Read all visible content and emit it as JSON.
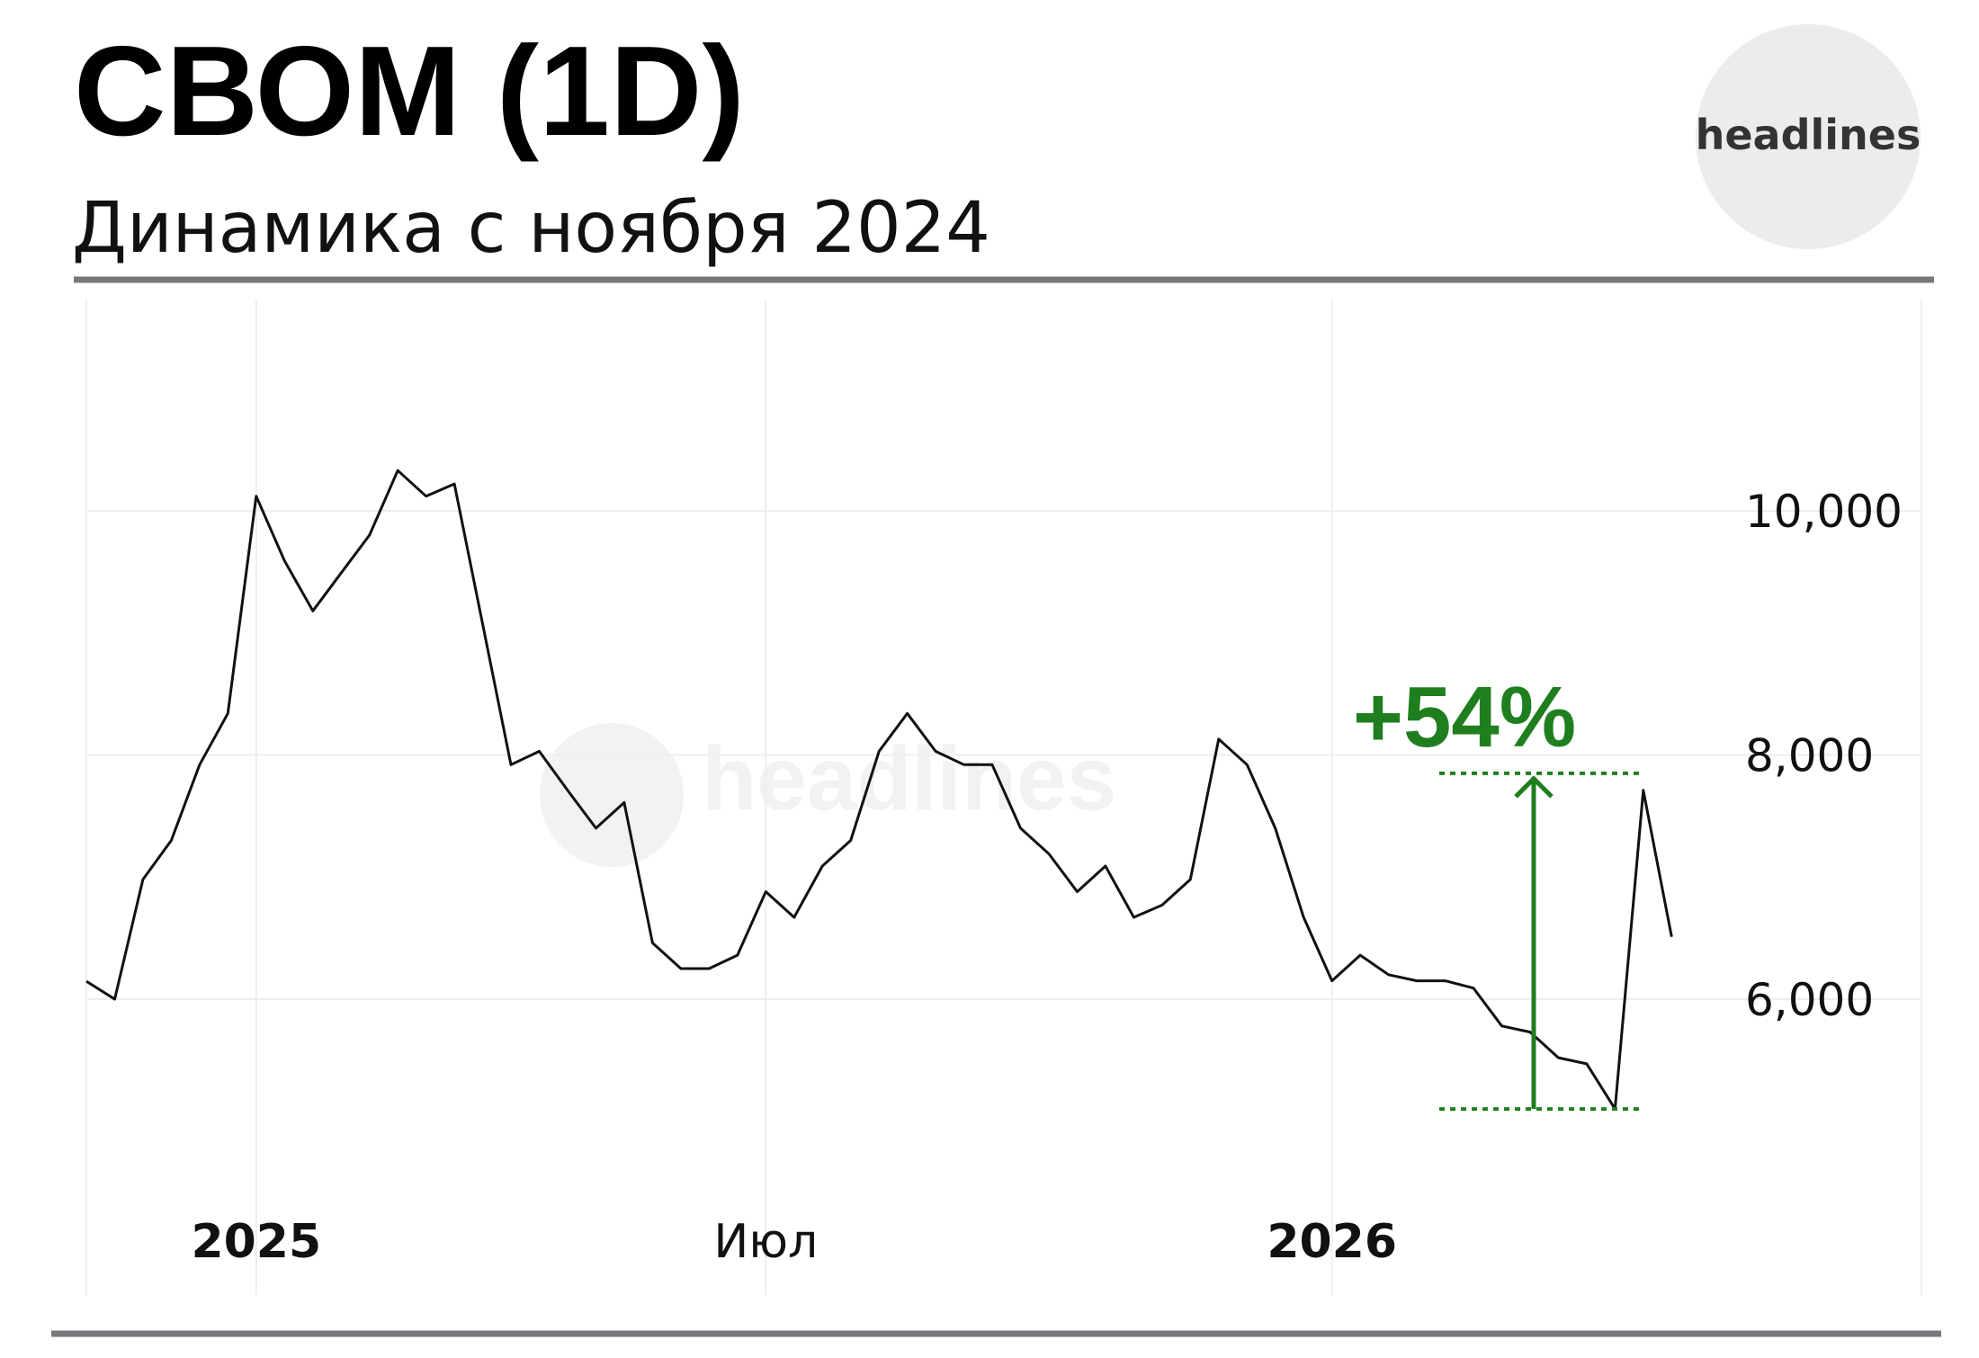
{
  "chart_data": {
    "type": "line",
    "title": "СВОМ (1D)",
    "subtitle": "Динамика с ноября 2024",
    "logo": "headlines",
    "watermark": "headlines",
    "color": "#111111",
    "categories": [
      null,
      null,
      null,
      null,
      null,
      null,
      "2025",
      null,
      null,
      null,
      null,
      null,
      null,
      null,
      null,
      null,
      null,
      null,
      null,
      null,
      null,
      null,
      null,
      null,
      "Июл",
      null,
      null,
      null,
      null,
      null,
      null,
      null,
      null,
      null,
      null,
      null,
      null,
      null,
      null,
      null,
      null,
      null,
      null,
      null,
      "2026",
      null,
      null,
      null,
      null,
      null,
      null,
      null,
      null,
      null,
      null,
      null,
      null
    ],
    "values": [
      6146,
      6000,
      6980,
      7300,
      7920,
      8340,
      10120,
      9590,
      9180,
      9490,
      9800,
      10330,
      10120,
      10220,
      9070,
      7920,
      8030,
      7710,
      7400,
      7610,
      6460,
      6250,
      6250,
      6360,
      6880,
      6670,
      7090,
      7300,
      8030,
      8340,
      8030,
      7920,
      7920,
      7400,
      7190,
      6880,
      7090,
      6670,
      6770,
      6980,
      8130,
      7920,
      7400,
      6670,
      6150,
      6360,
      6200,
      6150,
      6150,
      6090,
      5780,
      5730,
      5520,
      5470,
      5100,
      7710,
      6510
    ],
    "ylim": [
      3576,
      11731
    ],
    "yticks": [
      {
        "value": 6000,
        "label": "6,000"
      },
      {
        "value": 8000,
        "label": "8,000"
      },
      {
        "value": 10000,
        "label": "10,000"
      }
    ],
    "grid": true,
    "annotation": {
      "text": "+54%",
      "from": 5100,
      "to": 7850,
      "color": "#1f7f1f"
    }
  }
}
